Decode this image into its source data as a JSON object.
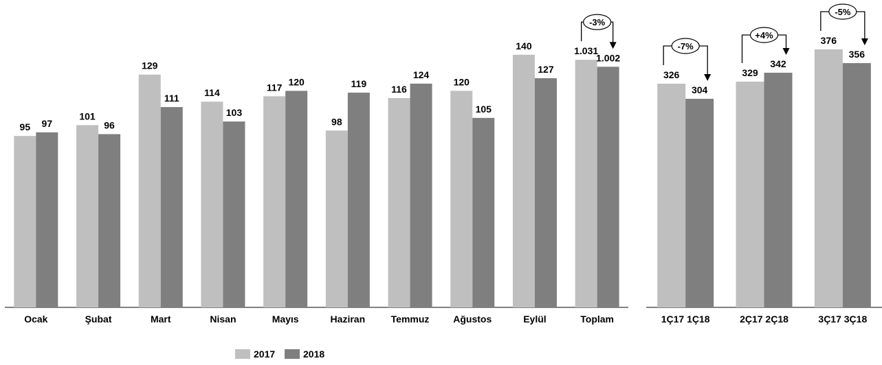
{
  "colors": {
    "series_2017": "#bfbfbf",
    "series_2018": "#7f7f7f",
    "axis": "#595959",
    "arrow": "#000000"
  },
  "chart_data": [
    {
      "type": "bar",
      "categories": [
        "Ocak",
        "Şubat",
        "Mart",
        "Nisan",
        "Mayıs",
        "Haziran",
        "Temmuz",
        "Ağustos",
        "Eylül",
        "Toplam"
      ],
      "series": [
        {
          "name": "2017",
          "values": [
            95,
            101,
            129,
            114,
            117,
            98,
            116,
            120,
            140,
            1031
          ],
          "labels": [
            "95",
            "101",
            "129",
            "114",
            "117",
            "98",
            "116",
            "120",
            "140",
            "1.031"
          ]
        },
        {
          "name": "2018",
          "values": [
            97,
            96,
            111,
            103,
            120,
            119,
            124,
            105,
            127,
            1002
          ],
          "labels": [
            "97",
            "96",
            "111",
            "103",
            "120",
            "119",
            "124",
            "105",
            "127",
            "1.002"
          ]
        }
      ],
      "annotations": [
        {
          "category": "Toplam",
          "text": "-3%"
        }
      ]
    },
    {
      "type": "bar",
      "categories": [
        "1Ç17 1Ç18",
        "2Ç17 2Ç18",
        "3Ç17 3Ç18"
      ],
      "series": [
        {
          "name": "2017",
          "values": [
            326,
            329,
            376
          ],
          "labels": [
            "326",
            "329",
            "376"
          ]
        },
        {
          "name": "2018",
          "values": [
            304,
            342,
            356
          ],
          "labels": [
            "304",
            "342",
            "356"
          ]
        }
      ],
      "annotations": [
        {
          "category": "1Ç17 1Ç18",
          "text": "-7%"
        },
        {
          "category": "2Ç17 2Ç18",
          "text": "+4%"
        },
        {
          "category": "3Ç17 3Ç18",
          "text": "-5%"
        }
      ]
    }
  ],
  "legend": {
    "items": [
      "2017",
      "2018"
    ],
    "position": "bottom-center"
  }
}
